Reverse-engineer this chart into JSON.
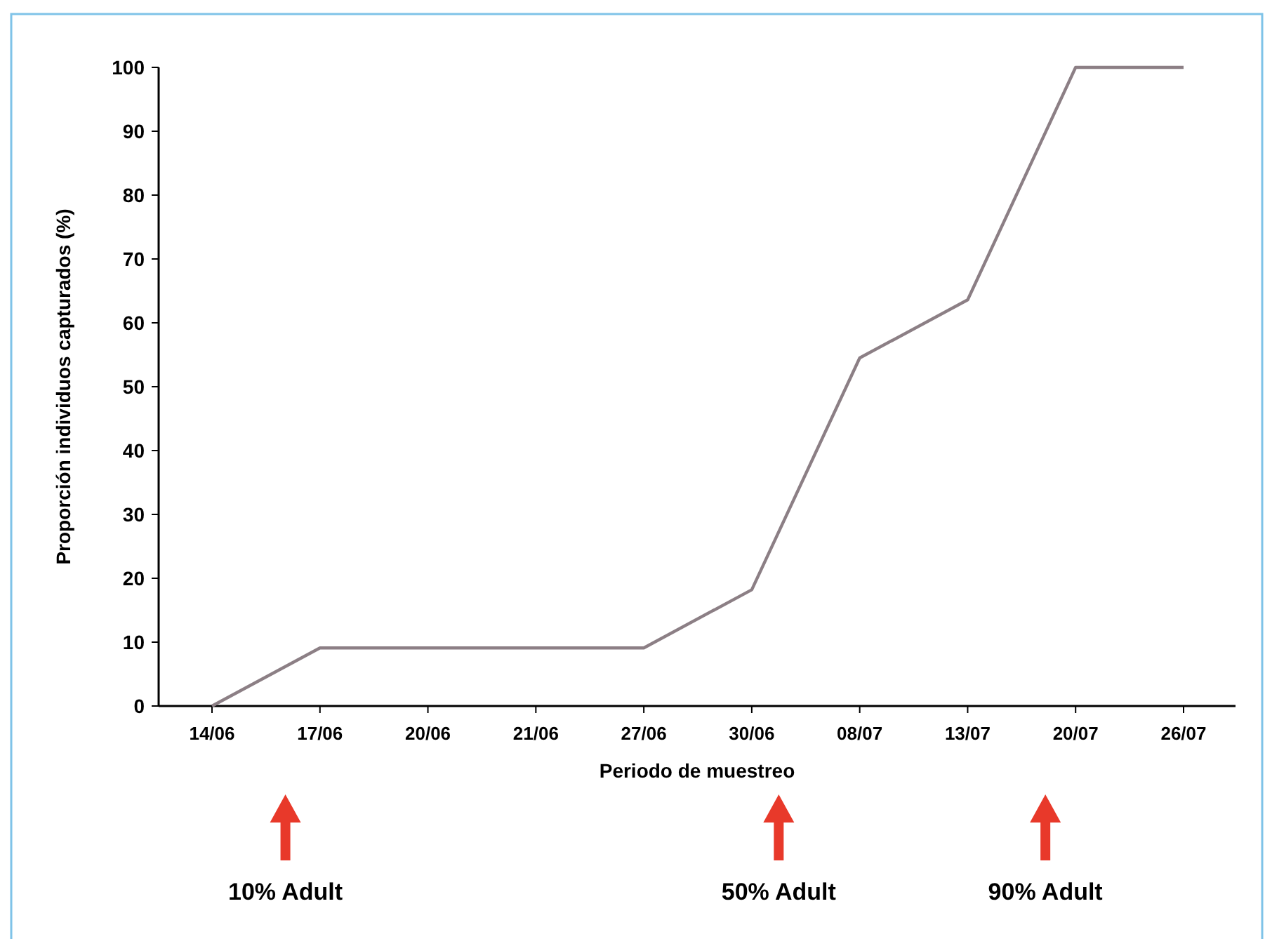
{
  "chart_data": {
    "type": "line",
    "categories": [
      "14/06",
      "17/06",
      "20/06",
      "21/06",
      "27/06",
      "30/06",
      "08/07",
      "13/07",
      "20/07",
      "26/07"
    ],
    "series": [
      {
        "color": "#8c7f85",
        "values": [
          0,
          9.1,
          9.1,
          9.1,
          9.1,
          18.2,
          54.5,
          63.6,
          100,
          100
        ]
      }
    ],
    "xlabel": "Periodo de muestreo",
    "ylabel": "Proporción individuos capturados (%)",
    "ylim": [
      0,
      100
    ],
    "yticks": [
      0,
      10,
      20,
      30,
      40,
      50,
      60,
      70,
      80,
      90,
      100
    ],
    "grid": false,
    "marker": "none",
    "line_style": "solid",
    "annotations": [
      "10% Adult",
      "50% Adult",
      "90% Adult"
    ]
  }
}
